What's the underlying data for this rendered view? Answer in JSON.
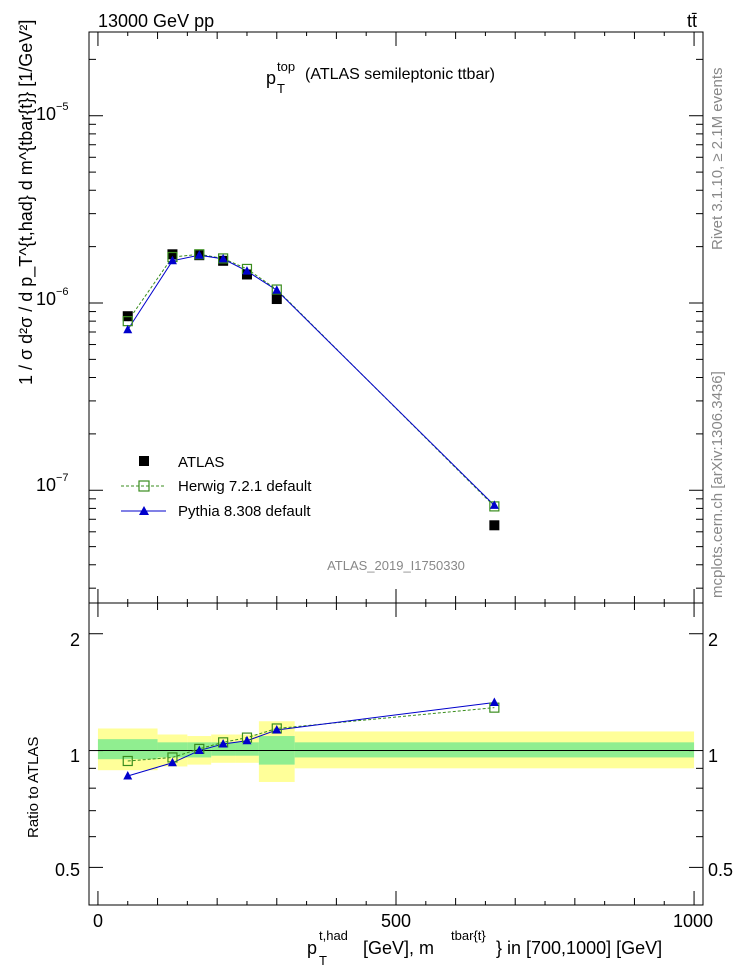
{
  "header": {
    "left_label": "13000 GeV pp",
    "right_label": "tt̄"
  },
  "side_labels": {
    "rivet": "Rivet 3.1.10, ≥ 2.1M events",
    "mcplots": "mcplots.cern.ch [arXiv:1306.3436]"
  },
  "main_plot": {
    "title_var": "p",
    "title_sup": "top",
    "title_sub": "T",
    "title_rest": "(ATLAS semileptonic ttbar)",
    "ylabel": "1 / σ d²σ / d p_T^{t,had} d m^{tbar{t}} [1/GeV²]",
    "ytick_labels": [
      "10",
      "10",
      "10"
    ],
    "ytick_exponents": [
      "−5",
      "−6",
      "−7"
    ],
    "analysis_id": "ATLAS_2019_I1750330"
  },
  "ratio_plot": {
    "ylabel": "Ratio to ATLAS",
    "ytick_labels": [
      "2",
      "1",
      "0.5"
    ]
  },
  "xaxis": {
    "tick_labels": [
      "0",
      "500",
      "1000"
    ],
    "label_var": "p",
    "label_sup": "t,had",
    "label_sub": "T",
    "label_mid": "[GeV], m",
    "label_sup2": "tbar{t}",
    "label_end": "} in [700,1000] [GeV]"
  },
  "legend": {
    "entries": [
      "ATLAS",
      "Herwig 7.2.1 default",
      "Pythia 8.308 default"
    ]
  },
  "colors": {
    "data": "#000000",
    "herwig": "#3a8d1e",
    "pythia": "#0000cc",
    "band_outer": "#ffff99",
    "band_inner": "#90ee90"
  },
  "chart_data": {
    "type": "line",
    "xlabel": "p_T^{t,had} [GeV], m^{tbar{t}} in [700,1000] [GeV]",
    "ylabel": "1 / σ d²σ / d p_T^{t,had} d m^{tbar{t}} [1/GeV²]",
    "xlim": [
      -15,
      1015
    ],
    "ylim": [
      2.5e-08,
      2.8e-05
    ],
    "yscale": "log",
    "legend_position": "bottom-left",
    "bins": [
      [
        0,
        100
      ],
      [
        100,
        150
      ],
      [
        150,
        190
      ],
      [
        190,
        230
      ],
      [
        230,
        270
      ],
      [
        270,
        330
      ],
      [
        330,
        1000
      ]
    ],
    "x": [
      50,
      125,
      170,
      210,
      250,
      300,
      665
    ],
    "series": [
      {
        "name": "ATLAS",
        "values": [
          8.5e-07,
          1.82e-06,
          1.8e-06,
          1.68e-06,
          1.42e-06,
          1.05e-06,
          6.5e-08
        ]
      },
      {
        "name": "Herwig 7.2.1 default",
        "values": [
          8e-07,
          1.76e-06,
          1.82e-06,
          1.73e-06,
          1.52e-06,
          1.18e-06,
          8.2e-08
        ]
      },
      {
        "name": "Pythia 8.308 default",
        "values": [
          7.2e-07,
          1.68e-06,
          1.8e-06,
          1.72e-06,
          1.48e-06,
          1.17e-06,
          8.3e-08
        ]
      }
    ],
    "ratio": {
      "ylabel": "Ratio to ATLAS",
      "ylim": [
        0.4,
        2.4
      ],
      "yscale": "log",
      "herwig": [
        0.94,
        0.96,
        1.01,
        1.05,
        1.08,
        1.14,
        1.29
      ],
      "pythia": [
        0.86,
        0.93,
        1.0,
        1.04,
        1.06,
        1.13,
        1.33
      ],
      "band_outer": [
        [
          0.89,
          1.14
        ],
        [
          0.91,
          1.1
        ],
        [
          0.92,
          1.09
        ],
        [
          0.93,
          1.1
        ],
        [
          0.93,
          1.1
        ],
        [
          0.83,
          1.19
        ],
        [
          0.9,
          1.12
        ]
      ],
      "band_inner": [
        [
          0.95,
          1.07
        ],
        [
          0.96,
          1.05
        ],
        [
          0.96,
          1.05
        ],
        [
          0.97,
          1.05
        ],
        [
          0.97,
          1.05
        ],
        [
          0.92,
          1.09
        ],
        [
          0.96,
          1.05
        ]
      ]
    }
  }
}
